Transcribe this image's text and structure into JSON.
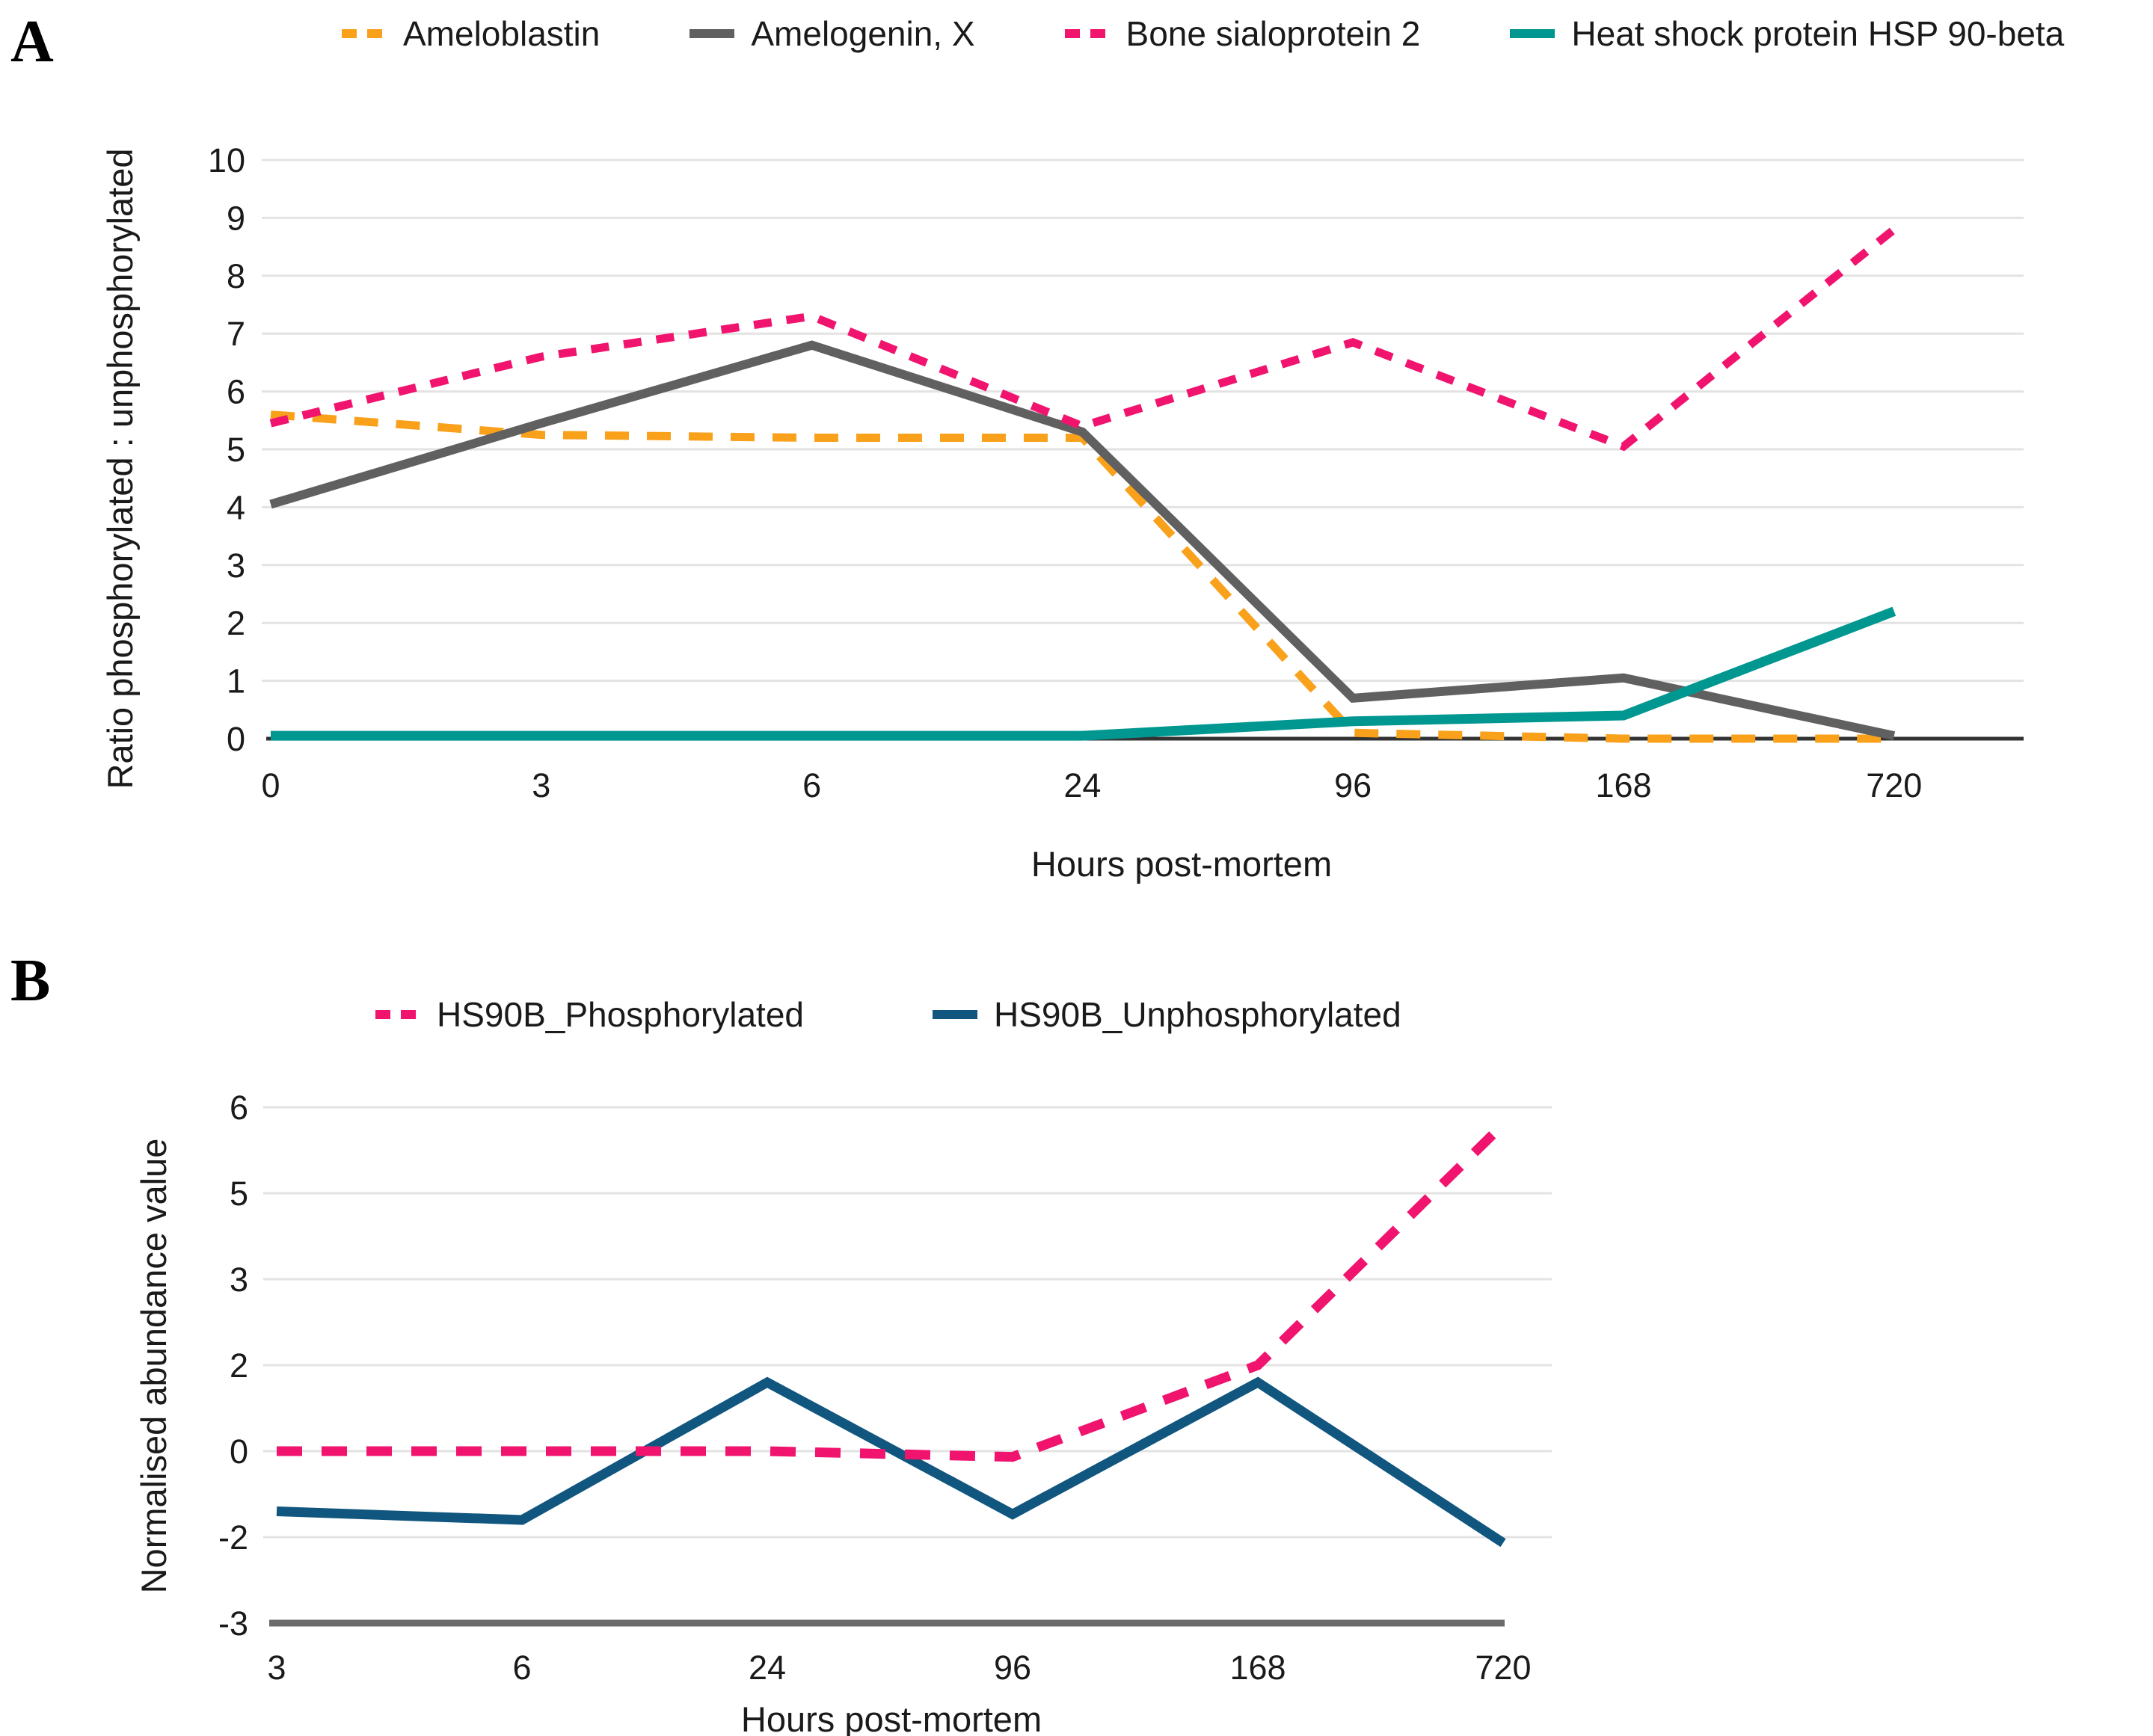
{
  "panels": [
    {
      "letter": "A"
    },
    {
      "letter": "B"
    }
  ],
  "chart_data": [
    {
      "type": "line",
      "panel": "A",
      "title": "",
      "xlabel": "Hours post-mortem",
      "ylabel": "Ratio phosphorylated : unphosphorylated",
      "categories": [
        "0",
        "3",
        "6",
        "24",
        "96",
        "168",
        "720"
      ],
      "ylim": [
        0,
        10
      ],
      "ytick_labels": [
        "0",
        "1",
        "2",
        "3",
        "4",
        "5",
        "6",
        "7",
        "8",
        "9",
        "10"
      ],
      "ytick_values": [
        0,
        1,
        2,
        3,
        4,
        5,
        6,
        7,
        8,
        9,
        10
      ],
      "grid": true,
      "legend_position": "top",
      "series": [
        {
          "name": "Ameloblastin",
          "color": "#F9A11B",
          "style": "dashed",
          "values": [
            5.6,
            5.25,
            5.2,
            5.2,
            0.1,
            0,
            0
          ]
        },
        {
          "name": "Amelogenin, X",
          "color": "#606060",
          "style": "solid",
          "values": [
            4.05,
            5.45,
            6.8,
            5.3,
            0.7,
            1.05,
            0.05
          ]
        },
        {
          "name": "Bone sialoprotein 2",
          "color": "#F0146E",
          "style": "dashed",
          "values": [
            5.45,
            6.6,
            7.3,
            5.4,
            6.85,
            5.05,
            8.8
          ]
        },
        {
          "name": "Heat shock protein HSP 90-beta",
          "color": "#009790",
          "style": "solid",
          "values": [
            0.05,
            0.05,
            0.05,
            0.05,
            0.3,
            0.4,
            2.2
          ]
        }
      ]
    },
    {
      "type": "line",
      "panel": "B",
      "title": "",
      "xlabel": "Hours post-mortem",
      "ylabel": "Normalised abundance value",
      "categories": [
        "3",
        "6",
        "24",
        "96",
        "168",
        "720"
      ],
      "ylim": [
        -3,
        6
      ],
      "ytick_labels": [
        "6",
        "5",
        "3",
        "2",
        "0",
        "-2",
        "-3"
      ],
      "ytick_values": [
        6,
        4.5,
        3,
        1.5,
        0,
        -1.5,
        -3
      ],
      "grid": true,
      "legend_position": "top",
      "series": [
        {
          "name": "HS90B_Phosphorylated",
          "color": "#F0146E",
          "style": "dashed",
          "values": [
            0,
            0,
            0,
            -0.1,
            1.5,
            5.7
          ]
        },
        {
          "name": "HS90B_Unphosphorylated",
          "color": "#11567F",
          "style": "solid",
          "values": [
            -1.05,
            -1.2,
            1.2,
            -1.1,
            1.2,
            -1.6
          ]
        }
      ]
    }
  ],
  "colors": {
    "grid": "#e3e3e3",
    "axis_a": "#333333",
    "axis_b": "#6b6b6b",
    "text": "#1a1a1a"
  }
}
